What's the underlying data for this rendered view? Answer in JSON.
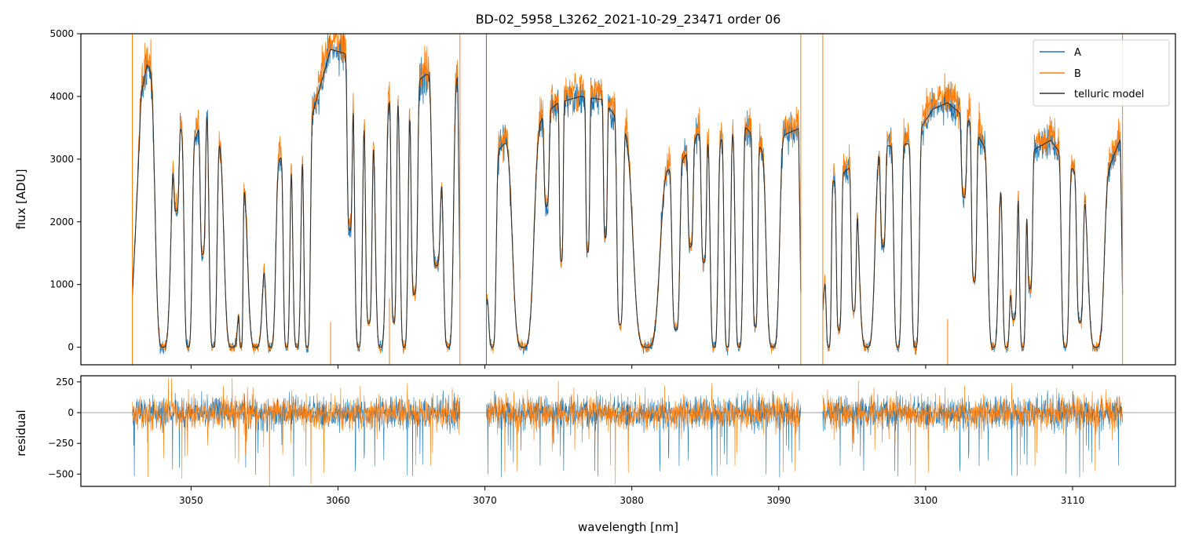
{
  "title": "BD-02_5958_L3262_2021-10-29_23471  order 06",
  "colors": {
    "A": "#1f77b4",
    "B": "#ff7f0e",
    "model": "#333333",
    "zero_line": "#808080"
  },
  "chart_data": [
    {
      "panel": "top",
      "type": "line",
      "title": "BD-02_5958_L3262_2021-10-29_23471  order 06",
      "xlabel": "",
      "ylabel": "flux [ADU]",
      "xlim": [
        3042.5,
        3117.0
      ],
      "ylim": [
        -280,
        5000
      ],
      "yticks": [
        0,
        1000,
        2000,
        3000,
        4000,
        5000
      ],
      "xticks": [
        3050,
        3060,
        3070,
        3080,
        3090,
        3100,
        3110
      ],
      "legend": {
        "placement": "top-right",
        "entries": [
          "A",
          "B",
          "telluric model"
        ]
      },
      "segments_nm": [
        [
          3046.0,
          3068.3
        ],
        [
          3070.1,
          3091.5
        ],
        [
          3093.0,
          3113.4
        ]
      ],
      "series": [
        {
          "name": "A",
          "color": "#1f77b4",
          "style": "noisy spectrum"
        },
        {
          "name": "B",
          "color": "#ff7f0e",
          "style": "noisy spectrum"
        },
        {
          "name": "telluric model",
          "color": "#333333",
          "style": "model"
        }
      ],
      "model_envelope": {
        "x": [
          3046.0,
          3047.0,
          3048.0,
          3050.0,
          3051.0,
          3053.0,
          3056.0,
          3058.0,
          3059.5,
          3061.0,
          3062.0,
          3064.0,
          3066.0,
          3068.3,
          3070.1,
          3071.5,
          3073.0,
          3074.0,
          3075.0,
          3076.5,
          3078.0,
          3079.5,
          3081.0,
          3083.0,
          3084.5,
          3086.0,
          3087.5,
          3089.0,
          3090.5,
          3091.5,
          3093.0,
          3095.0,
          3097.0,
          3099.0,
          3100.5,
          3101.5,
          3103.0,
          3105.0,
          3107.0,
          3108.5,
          3110.0,
          3111.5,
          3113.4
        ],
        "y": [
          3300,
          4500,
          4200,
          3100,
          3850,
          2650,
          3000,
          3500,
          4750,
          4650,
          3800,
          4000,
          4350,
          4300,
          2900,
          3300,
          3300,
          3700,
          3900,
          4000,
          3950,
          3500,
          3000,
          2800,
          3400,
          3300,
          3600,
          3100,
          3400,
          3500,
          2500,
          2900,
          3200,
          3250,
          3800,
          3900,
          3600,
          2800,
          3100,
          3300,
          2850,
          2300,
          3400
        ]
      },
      "absorption_lines": [
        {
          "c": 3048.1,
          "w": 0.6,
          "d": 1.0
        },
        {
          "c": 3049.0,
          "w": 0.2,
          "d": 0.4
        },
        {
          "c": 3049.8,
          "w": 0.3,
          "d": 1.0
        },
        {
          "c": 3050.8,
          "w": 0.2,
          "d": 0.6
        },
        {
          "c": 3051.5,
          "w": 0.3,
          "d": 1.0
        },
        {
          "c": 3052.8,
          "w": 0.6,
          "d": 1.0
        },
        {
          "c": 3053.4,
          "w": 0.15,
          "d": 1.0
        },
        {
          "c": 3054.4,
          "w": 0.6,
          "d": 1.0
        },
        {
          "c": 3055.4,
          "w": 0.4,
          "d": 1.0
        },
        {
          "c": 3056.5,
          "w": 0.25,
          "d": 1.0
        },
        {
          "c": 3057.2,
          "w": 0.3,
          "d": 1.0
        },
        {
          "c": 3057.9,
          "w": 0.25,
          "d": 1.0
        },
        {
          "c": 3060.8,
          "w": 0.2,
          "d": 0.6
        },
        {
          "c": 3061.4,
          "w": 0.3,
          "d": 1.0
        },
        {
          "c": 3062.1,
          "w": 0.25,
          "d": 0.9
        },
        {
          "c": 3062.9,
          "w": 0.4,
          "d": 1.0
        },
        {
          "c": 3063.8,
          "w": 0.2,
          "d": 0.9
        },
        {
          "c": 3064.5,
          "w": 0.3,
          "d": 1.0
        },
        {
          "c": 3065.2,
          "w": 0.25,
          "d": 0.8
        },
        {
          "c": 3066.7,
          "w": 0.35,
          "d": 0.7
        },
        {
          "c": 3067.5,
          "w": 0.4,
          "d": 1.0
        },
        {
          "c": 3070.5,
          "w": 0.3,
          "d": 1.0
        },
        {
          "c": 3072.6,
          "w": 0.8,
          "d": 1.0
        },
        {
          "c": 3074.2,
          "w": 0.2,
          "d": 0.4
        },
        {
          "c": 3075.2,
          "w": 0.15,
          "d": 0.65
        },
        {
          "c": 3077.0,
          "w": 0.15,
          "d": 0.62
        },
        {
          "c": 3078.2,
          "w": 0.15,
          "d": 0.55
        },
        {
          "c": 3079.2,
          "w": 0.25,
          "d": 0.9
        },
        {
          "c": 3081.0,
          "w": 1.0,
          "d": 1.0
        },
        {
          "c": 3083.0,
          "w": 0.3,
          "d": 0.9
        },
        {
          "c": 3084.0,
          "w": 0.2,
          "d": 0.5
        },
        {
          "c": 3084.9,
          "w": 0.2,
          "d": 0.6
        },
        {
          "c": 3085.6,
          "w": 0.3,
          "d": 1.0
        },
        {
          "c": 3086.5,
          "w": 0.25,
          "d": 1.0
        },
        {
          "c": 3087.3,
          "w": 0.3,
          "d": 1.0
        },
        {
          "c": 3088.4,
          "w": 0.2,
          "d": 0.9
        },
        {
          "c": 3089.6,
          "w": 0.5,
          "d": 1.0
        },
        {
          "c": 3093.4,
          "w": 0.2,
          "d": 1.0
        },
        {
          "c": 3094.1,
          "w": 0.2,
          "d": 0.9
        },
        {
          "c": 3095.1,
          "w": 0.2,
          "d": 0.8
        },
        {
          "c": 3096.0,
          "w": 0.6,
          "d": 1.0
        },
        {
          "c": 3097.1,
          "w": 0.2,
          "d": 0.5
        },
        {
          "c": 3098.1,
          "w": 0.3,
          "d": 1.0
        },
        {
          "c": 3099.3,
          "w": 0.3,
          "d": 1.0
        },
        {
          "c": 3102.6,
          "w": 0.2,
          "d": 0.35
        },
        {
          "c": 3103.3,
          "w": 0.2,
          "d": 0.7
        },
        {
          "c": 3104.6,
          "w": 0.4,
          "d": 1.0
        },
        {
          "c": 3105.5,
          "w": 0.3,
          "d": 1.0
        },
        {
          "c": 3106.0,
          "w": 0.25,
          "d": 0.85
        },
        {
          "c": 3106.6,
          "w": 0.25,
          "d": 1.0
        },
        {
          "c": 3107.1,
          "w": 0.2,
          "d": 0.7
        },
        {
          "c": 3109.5,
          "w": 0.3,
          "d": 1.0
        },
        {
          "c": 3110.5,
          "w": 0.25,
          "d": 0.85
        },
        {
          "c": 3111.6,
          "w": 0.6,
          "d": 1.0
        }
      ],
      "spikes": [
        {
          "series": "B",
          "x": 3046.0,
          "y": 5000
        },
        {
          "series": "A",
          "x": 3046.0,
          "y": -280
        },
        {
          "series": "B",
          "x": 3059.5,
          "y": 400
        },
        {
          "series": "B",
          "x": 3063.5,
          "y": 780
        },
        {
          "series": "B",
          "x": 3068.3,
          "y": 5000
        },
        {
          "series": "A",
          "x": 3070.1,
          "y": 5000
        },
        {
          "series": "B",
          "x": 3091.5,
          "y": 5000
        },
        {
          "series": "A",
          "x": 3091.5,
          "y": -280
        },
        {
          "series": "B",
          "x": 3093.0,
          "y": 5000
        },
        {
          "series": "B",
          "x": 3101.5,
          "y": 450
        },
        {
          "series": "B",
          "x": 3113.4,
          "y": 5000
        }
      ]
    },
    {
      "panel": "bottom",
      "type": "line",
      "xlabel": "wavelength [nm]",
      "ylabel": "residual",
      "xlim": [
        3042.5,
        3117.0
      ],
      "ylim": [
        -600,
        300
      ],
      "yticks": [
        -500,
        -250,
        0,
        250
      ],
      "ytick_labels": [
        "−500",
        "−250",
        "0",
        "250"
      ],
      "xticks": [
        3050,
        3060,
        3070,
        3080,
        3090,
        3100,
        3110
      ],
      "xtick_labels": [
        "3050",
        "3060",
        "3070",
        "3080",
        "3090",
        "3100",
        "3110"
      ],
      "zero_line": true,
      "series": [
        {
          "name": "A",
          "color": "#1f77b4"
        },
        {
          "name": "B",
          "color": "#ff7f0e"
        }
      ],
      "noise_std": 70
    }
  ]
}
